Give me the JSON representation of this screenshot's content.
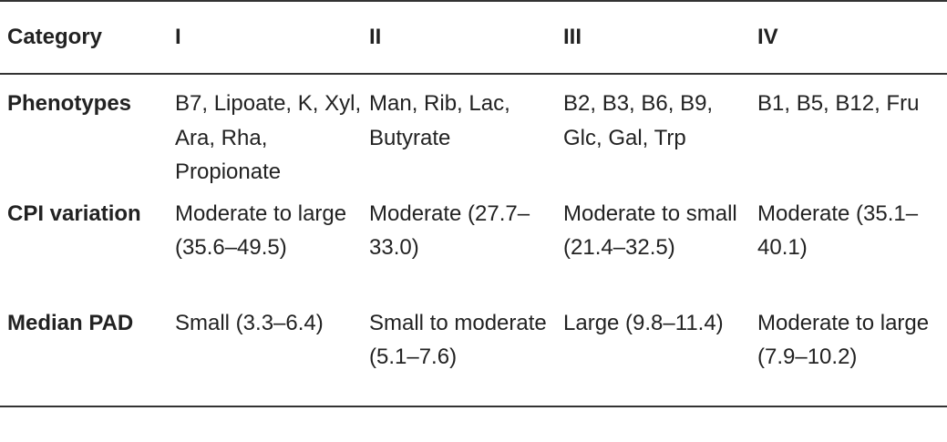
{
  "table": {
    "headers": [
      "Category",
      "I",
      "II",
      "III",
      "IV"
    ],
    "rows": [
      {
        "label": "Phenotypes",
        "cells": [
          "B7, Lipoate, K, Xyl, Ara, Rha, Propionate",
          "Man, Rib, Lac, Butyrate",
          "B2, B3, B6, B9, Glc, Gal, Trp",
          "B1, B5, B12, Fru"
        ]
      },
      {
        "label": "CPI variation",
        "cells": [
          "Moderate to large (35.6–49.5)",
          "Moderate (27.7–33.0)",
          "Moderate to small (21.4–32.5)",
          "Moderate (35.1–40.1)"
        ]
      },
      {
        "label": "Median PAD",
        "cells": [
          "Small (3.3–6.4)",
          "Small to moderate (5.1–7.6)",
          "Large (9.8–11.4)",
          "Moderate to large (7.9–10.2)"
        ]
      }
    ]
  }
}
